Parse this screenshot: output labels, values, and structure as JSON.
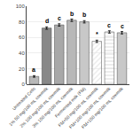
{
  "chart_data": {
    "type": "bar",
    "categories": [
      "Untreated Cells",
      "1% 50 mg/100 mL cowmilk",
      "2% 100 mg/100 mL cowmilk",
      "3% 150 mg/100 mL cowmilk",
      "Fermented milk (FM)",
      "FM+50 mg/100 mL cowmilk",
      "FM+100 mg/100 mL cowmilk",
      "FM+150 mg/100 mL cowmilk"
    ],
    "values": [
      10,
      72,
      76,
      82,
      80,
      55,
      67,
      66
    ],
    "errors": [
      1.0,
      1.5,
      1.5,
      1.5,
      1.5,
      1.5,
      1.5,
      1.5
    ],
    "annotations": [
      "a",
      "d",
      "c",
      "b",
      "b",
      "*",
      "c",
      "c"
    ],
    "colors": [
      "#b8b8b8",
      "#888888",
      "#a8a8a8",
      "#b8b8b8",
      "#c8c8c8",
      "#e8e8e8",
      "#e0e0e0",
      "#c8c8c8"
    ],
    "ylim": [
      0,
      100
    ],
    "yticks": [
      0,
      20,
      40,
      60,
      80,
      100
    ],
    "grid": true
  }
}
